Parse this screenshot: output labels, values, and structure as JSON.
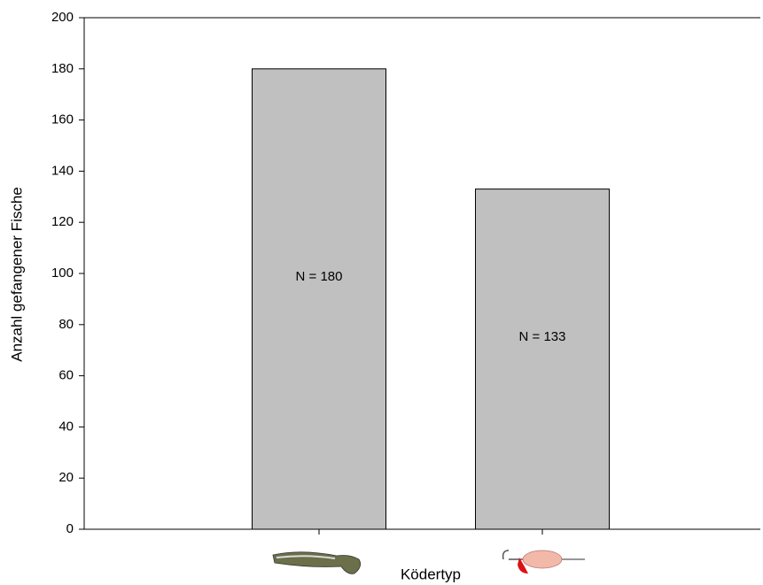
{
  "chart_data": {
    "type": "bar",
    "y_label": "Anzahl gefangener Fische",
    "x_label": "Ködertyp",
    "categories": [
      null,
      null
    ],
    "values": [
      180,
      133
    ],
    "value_labels": [
      "N = 180",
      "N = 133"
    ],
    "color": "#c0c0c0",
    "ylim": [
      0,
      200
    ],
    "yticks": [
      0,
      20,
      40,
      60,
      80,
      100,
      120,
      140,
      160,
      180,
      200
    ]
  }
}
